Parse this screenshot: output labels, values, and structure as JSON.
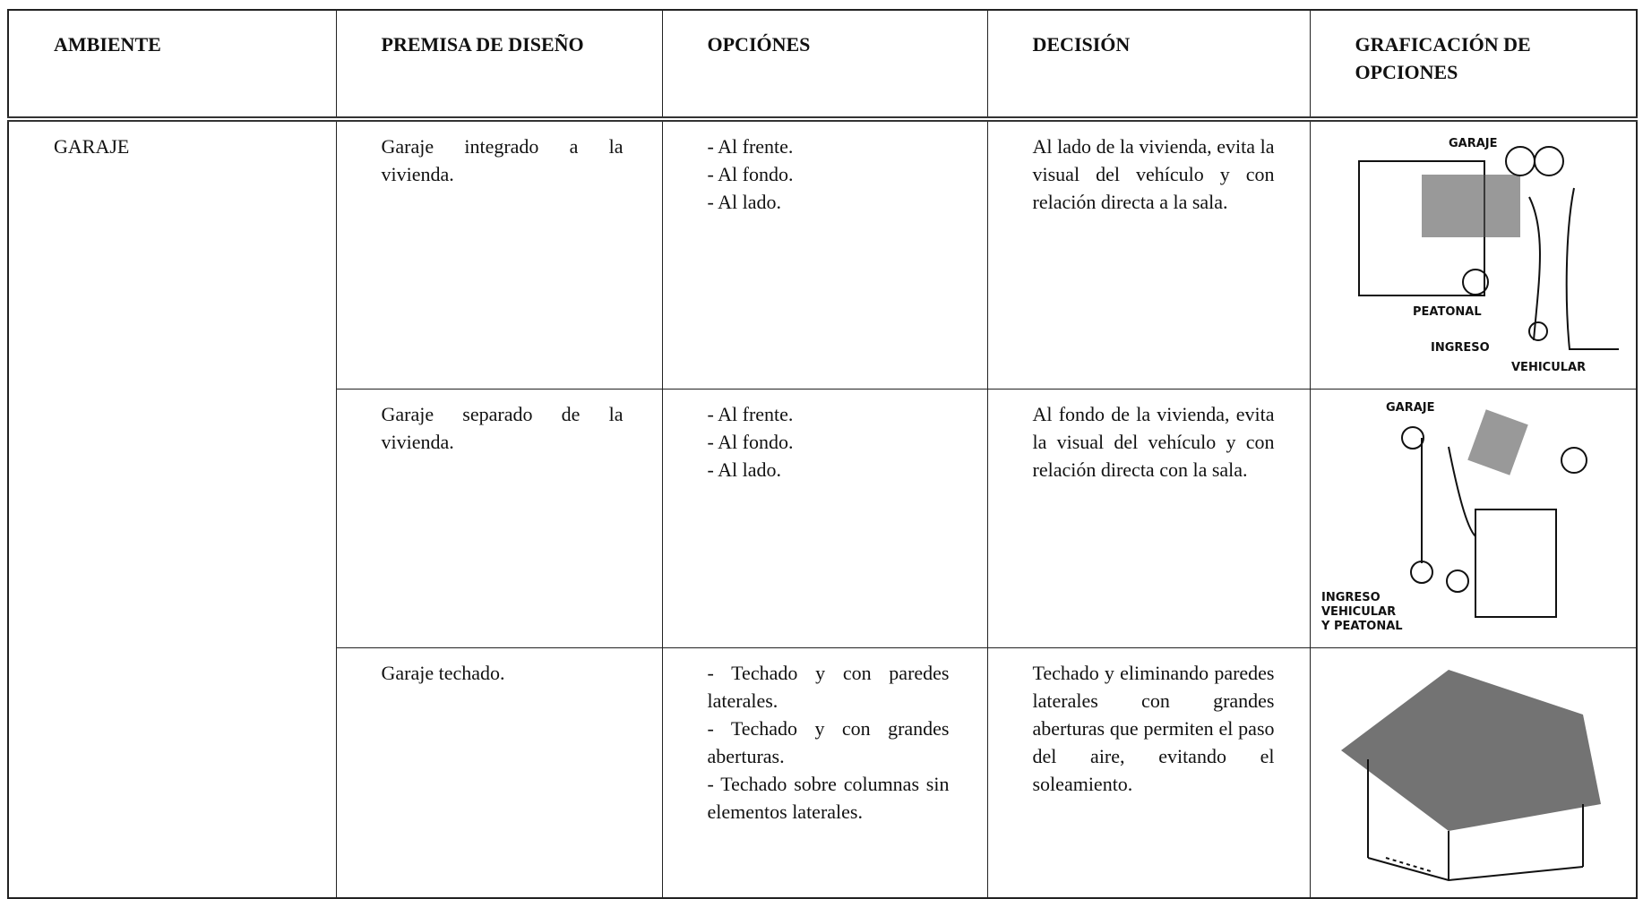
{
  "header": {
    "columns": [
      "AMBIENTE",
      "PREMISA DE DISEÑO",
      "OPCIÓNES",
      "DECISIÓN",
      "GRAFICACIÓN DE OPCIONES"
    ]
  },
  "table": {
    "ambiente": "GARAJE",
    "rows": [
      {
        "premise": "Garaje integrado a la vivienda.",
        "options": [
          "- Al frente.",
          "- Al fondo.",
          "- Al lado."
        ],
        "decision": "Al lado de la vivienda, evita la visual del vehículo y con relación directa a la sala.",
        "graphic_labels": [
          "GARAJE",
          "PEATONAL",
          "INGRESO",
          "VEHICULAR"
        ]
      },
      {
        "premise": "Garaje separado de la vivienda.",
        "options": [
          "- Al frente.",
          "- Al fondo.",
          "- Al lado."
        ],
        "decision": "Al fondo de la vivienda, evita la visual del vehículo y con relación directa con la sala.",
        "graphic_labels": [
          "GARAJE",
          "INGRESO",
          "VEHICULAR",
          "Y PEATONAL"
        ]
      },
      {
        "premise": "Garaje techado.",
        "options": [
          "- Techado y con paredes laterales.",
          "- Techado y con grandes aberturas.",
          "- Techado sobre columnas sin elementos laterales."
        ],
        "decision": "Techado y eliminando paredes laterales con grandes aberturas que permiten el paso del aire, evitando el soleamiento."
      }
    ]
  }
}
